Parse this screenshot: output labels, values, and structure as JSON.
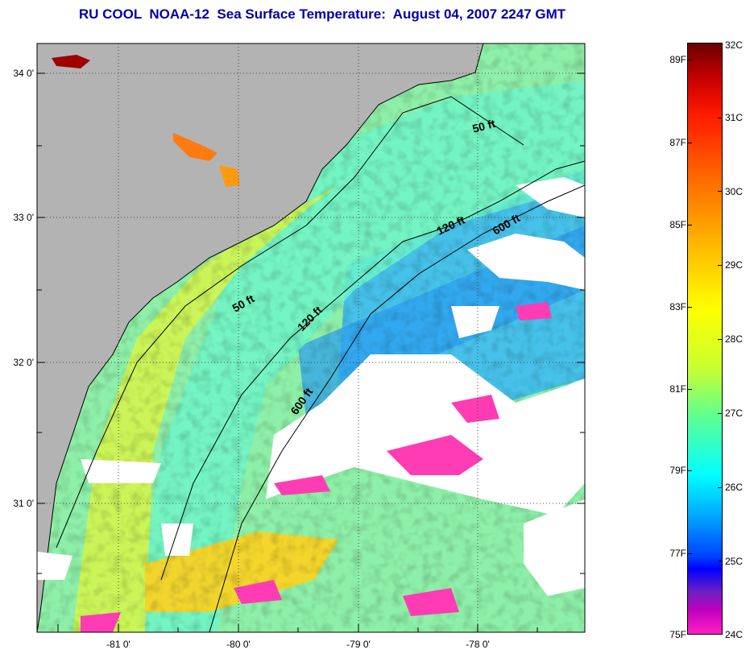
{
  "title": "RU COOL  NOAA-12  Sea Surface Temperature:  August 04, 2007 2247 GMT",
  "map": {
    "latitude_labels": [
      "34 0'",
      "33 0'",
      "32 0'",
      "31 0'"
    ],
    "longitude_labels": [
      "-81 0'",
      "-80 0'",
      "-79 0'",
      "-78 0'"
    ],
    "contour_labels": [
      "50 ft",
      "120 ft",
      "600 ft",
      "50 ft",
      "120 ft",
      "600 ft"
    ],
    "colors": {
      "land": "#b3b3b3",
      "cloud": "#ffffff",
      "ocean_shelf": "#b4f57a",
      "ocean_mid": "#5ef0d0",
      "ocean_deep": "#2aa8ff",
      "warm_inshore": "#ffd21e",
      "cold_patch": "#ff3cb4"
    }
  },
  "colorbar": {
    "fahrenheit_labels": [
      "89F",
      "87F",
      "85F",
      "83F",
      "81F",
      "79F",
      "77F",
      "75F"
    ],
    "celsius_labels": [
      "32C",
      "31C",
      "30C",
      "29C",
      "28C",
      "27C",
      "26C",
      "25C",
      "24C"
    ]
  }
}
